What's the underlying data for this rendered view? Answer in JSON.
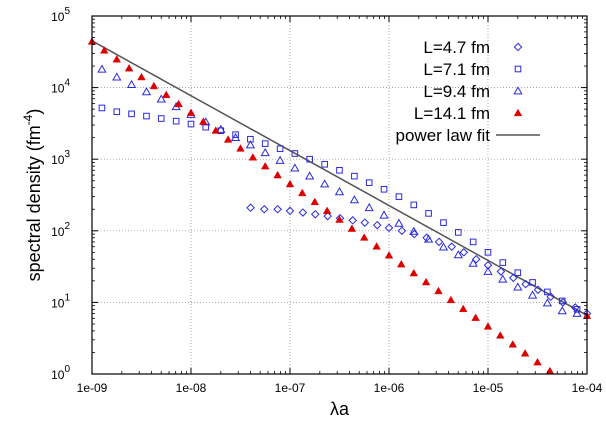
{
  "chart_data": {
    "type": "scatter",
    "title": "",
    "xlabel": "λa",
    "ylabel": "spectral density (fm",
    "ylabel_superscript": "-4",
    "ylabel_suffix": ")",
    "x_scale": "log",
    "y_scale": "log",
    "xlim": [
      1e-09,
      0.0001
    ],
    "ylim": [
      1,
      100000
    ],
    "x_tick_labels": [
      "1e-09",
      "1e-08",
      "1e-07",
      "1e-06",
      "1e-05",
      "1e-04"
    ],
    "y_tick_labels": [
      {
        "base": "10",
        "exp": "0"
      },
      {
        "base": "10",
        "exp": "1"
      },
      {
        "base": "10",
        "exp": "2"
      },
      {
        "base": "10",
        "exp": "3"
      },
      {
        "base": "10",
        "exp": "4"
      },
      {
        "base": "10",
        "exp": "5"
      }
    ],
    "grid": true,
    "legend_position": "top-right",
    "series": [
      {
        "name": "L=4.7 fm",
        "marker": "diamond-open",
        "color": "#2a2adc",
        "x": [
          4e-08,
          5.5e-08,
          7.5e-08,
          1e-07,
          1.35e-07,
          1.8e-07,
          2.4e-07,
          3.2e-07,
          4.3e-07,
          5.7e-07,
          7.6e-07,
          1e-06,
          1.35e-06,
          1.8e-06,
          2.4e-06,
          3.2e-06,
          4.3e-06,
          5.7e-06,
          7.6e-06,
          1e-05,
          1.35e-05,
          1.8e-05,
          2.4e-05,
          3.2e-05,
          4.3e-05,
          5.7e-05,
          7.6e-05,
          0.0001
        ],
        "y": [
          210,
          200,
          200,
          190,
          180,
          170,
          160,
          150,
          140,
          130,
          120,
          110,
          100,
          90,
          80,
          70,
          60,
          50,
          40,
          33,
          27,
          22,
          18,
          15,
          12,
          10,
          8.5,
          7
        ]
      },
      {
        "name": "L=7.1 fm",
        "marker": "square-open",
        "color": "#2a2adc",
        "x": [
          1.26e-09,
          1.78e-09,
          2.51e-09,
          3.55e-09,
          5.01e-09,
          7.08e-09,
          1e-08,
          1.41e-08,
          2e-08,
          2.82e-08,
          3.98e-08,
          5.62e-08,
          7.94e-08,
          1.12e-07,
          1.58e-07,
          2.24e-07,
          3.16e-07,
          4.47e-07,
          6.31e-07,
          8.91e-07,
          1.26e-06,
          1.78e-06,
          2.51e-06,
          3.55e-06,
          5.01e-06,
          7.08e-06,
          1e-05,
          1.41e-05,
          2e-05,
          2.82e-05,
          3.98e-05,
          5.62e-05,
          7.94e-05
        ],
        "y": [
          5200,
          4600,
          4300,
          4000,
          3700,
          3400,
          3100,
          2800,
          2500,
          2200,
          1900,
          1650,
          1400,
          1200,
          1000,
          850,
          700,
          580,
          470,
          380,
          300,
          230,
          175,
          130,
          95,
          70,
          50,
          36,
          26,
          19,
          14,
          10.5,
          8
        ]
      },
      {
        "name": "L=9.4 fm",
        "marker": "triangle-open",
        "color": "#2a2adc",
        "x": [
          1.26e-09,
          1.78e-09,
          2.51e-09,
          3.55e-09,
          5.01e-09,
          7.08e-09,
          1e-08,
          1.41e-08,
          2e-08,
          2.82e-08,
          3.98e-08,
          5.62e-08,
          7.94e-08,
          1.12e-07,
          1.58e-07,
          2.24e-07,
          3.16e-07,
          4.47e-07,
          6.31e-07,
          8.91e-07,
          1.26e-06,
          1.78e-06,
          2.51e-06,
          3.55e-06,
          5.01e-06,
          7.08e-06,
          1e-05,
          1.41e-05,
          2e-05,
          2.82e-05,
          3.98e-05,
          5.62e-05,
          7.94e-05
        ],
        "y": [
          18000,
          14000,
          11000,
          8700,
          6900,
          5400,
          4200,
          3300,
          2600,
          2000,
          1580,
          1230,
          960,
          750,
          580,
          450,
          350,
          270,
          210,
          165,
          127,
          98,
          76,
          59,
          46,
          35,
          27,
          21,
          16.3,
          12.6,
          9.8,
          7.6,
          7
        ]
      },
      {
        "name": "L=14.1 fm",
        "marker": "triangle-filled",
        "color": "#dd0000",
        "x": [
          1e-09,
          1.33e-09,
          1.78e-09,
          2.37e-09,
          3.16e-09,
          4.22e-09,
          5.62e-09,
          7.5e-09,
          1e-08,
          1.33e-08,
          1.78e-08,
          2.37e-08,
          3.16e-08,
          4.22e-08,
          5.62e-08,
          7.5e-08,
          1e-07,
          1.33e-07,
          1.78e-07,
          2.37e-07,
          3.16e-07,
          4.22e-07,
          5.62e-07,
          7.5e-07,
          1e-06,
          1.33e-06,
          1.78e-06,
          2.37e-06,
          3.16e-06,
          4.22e-06,
          5.62e-06,
          7.5e-06,
          1e-05,
          1.33e-05,
          1.78e-05,
          2.37e-05,
          3.16e-05,
          4.22e-05,
          5.62e-05,
          7.5e-05,
          0.0001
        ],
        "y": [
          44000,
          33000,
          24800,
          18600,
          14000,
          10500,
          7900,
          5900,
          4450,
          3340,
          2510,
          1880,
          1410,
          1060,
          797,
          598,
          449,
          337,
          253,
          190,
          143,
          107,
          80.5,
          60.4,
          45.4,
          34.1,
          25.6,
          19.2,
          14.4,
          10.8,
          8.1,
          6.1,
          4.6,
          3.45,
          2.59,
          1.94,
          1.46,
          1.1,
          0.82,
          0.62,
          6.5
        ]
      }
    ],
    "fit": {
      "name": "power law fit",
      "color": "#555555",
      "x": [
        1e-09,
        0.0001
      ],
      "y": [
        45000,
        6.6
      ]
    }
  }
}
